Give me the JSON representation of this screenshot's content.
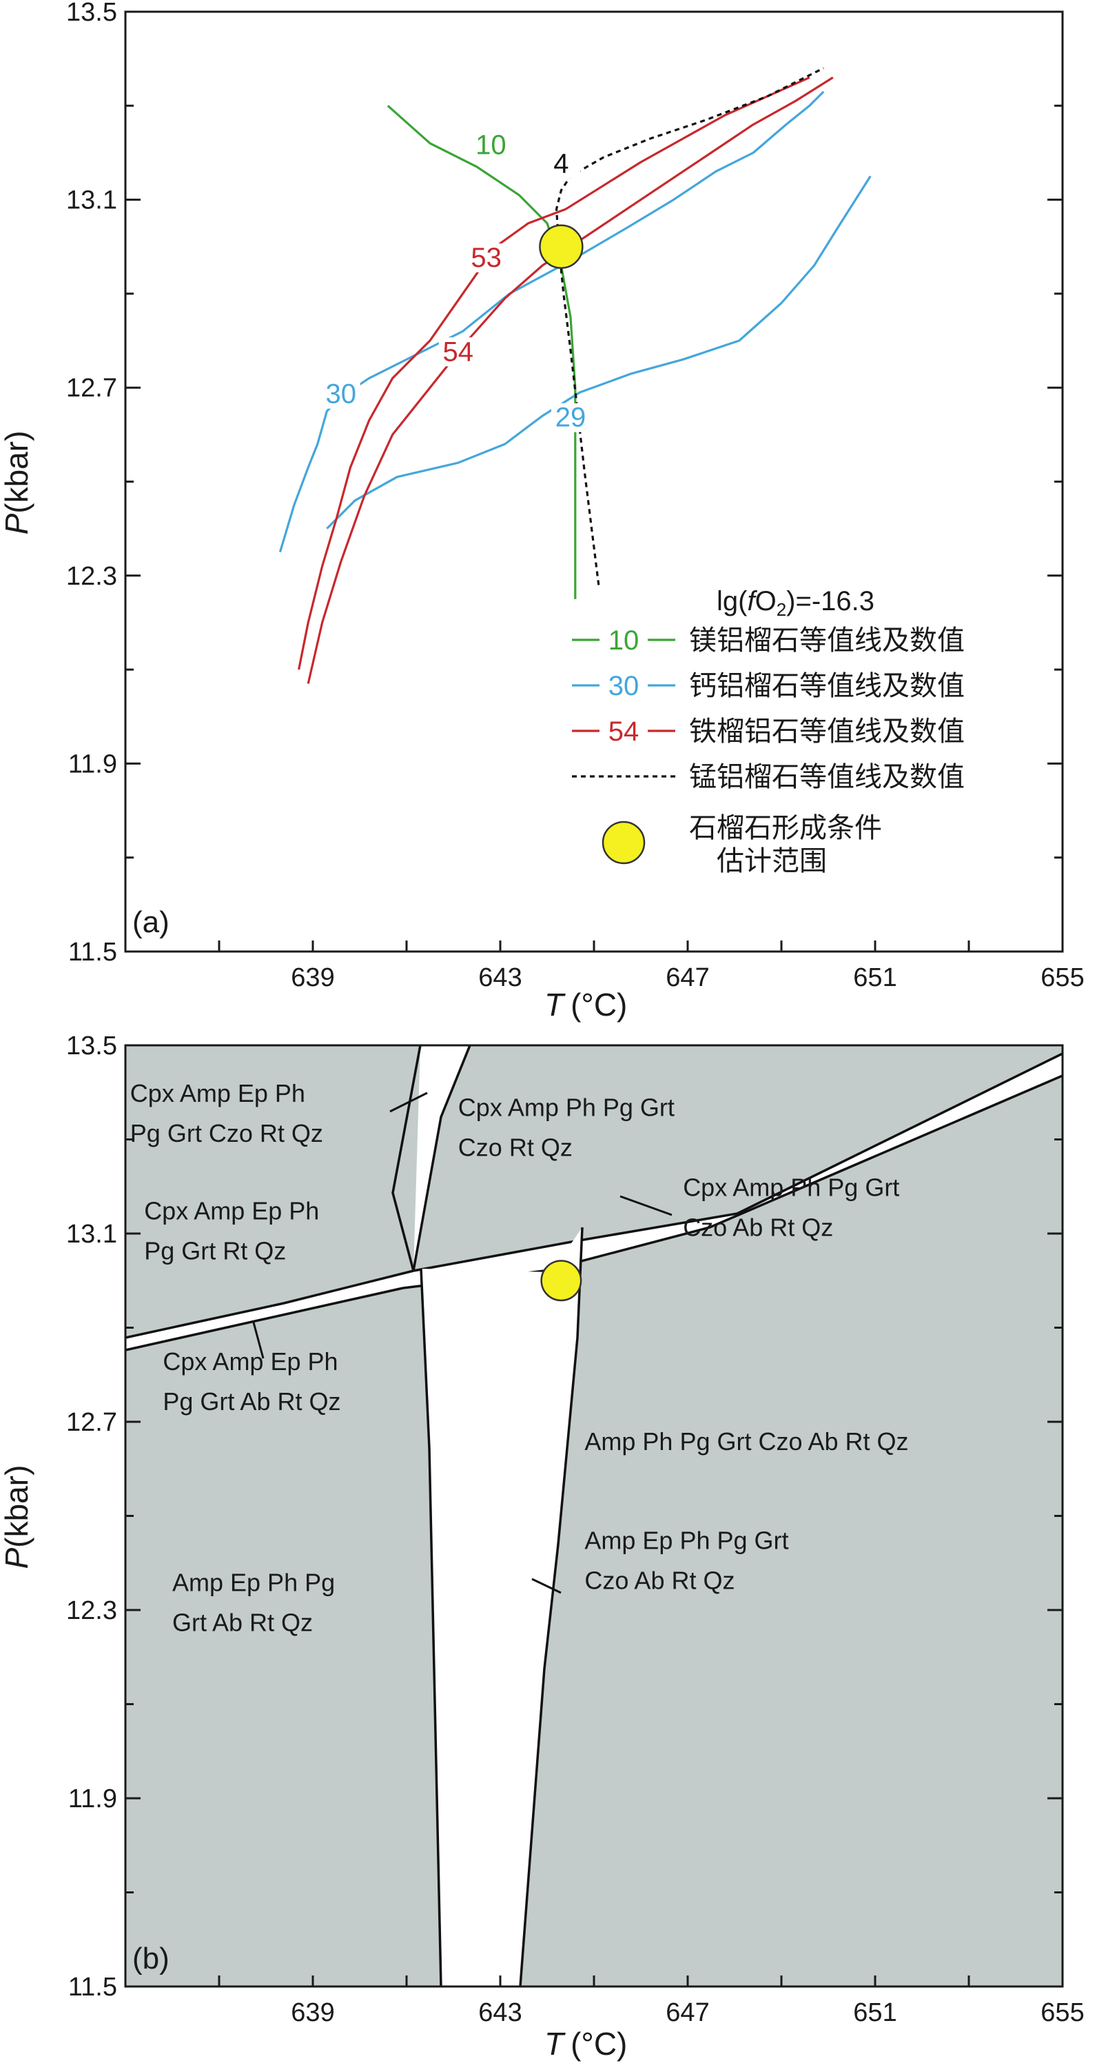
{
  "chart_data": [
    {
      "panel": "(a)",
      "type": "line",
      "xlabel": {
        "var": "T",
        "unit": "(°C)"
      },
      "ylabel": {
        "var": "P",
        "unit": "(kbar)"
      },
      "xlim": [
        635,
        655
      ],
      "ylim": [
        11.5,
        13.5
      ],
      "xticks": [
        "639",
        "643",
        "647",
        "651",
        "655"
      ],
      "yticks": [
        "11.5",
        "11.9",
        "12.3",
        "12.7",
        "13.1",
        "13.5"
      ],
      "legend_title": "lg(fO₂)=-16.3",
      "legend_title_parts": {
        "prefix": "lg(",
        "f": "f",
        "O": "O",
        "sub": "2",
        "suffix": ")=-16.3"
      },
      "legend_position": "bottom-right",
      "colors": {
        "pyrope": "#3aa535",
        "grossular": "#44a6dc",
        "almandine": "#c8282d",
        "spessartine": "#111111",
        "marker": "#f5f01f"
      },
      "legend": [
        {
          "key": "pyrope",
          "line_label": "10",
          "text": "镁铝榴石等值线及数值"
        },
        {
          "key": "grossular",
          "line_label": "30",
          "text": "钙铝榴石等值线及数值"
        },
        {
          "key": "almandine",
          "line_label": "54",
          "text": "铁榴铝石等值线及数值"
        },
        {
          "key": "spessartine",
          "line_label": "",
          "text": "锰铝榴石等值线及数值"
        },
        {
          "key": "marker",
          "line_label": "",
          "text": "石榴石形成条件",
          "text2": "估计范围"
        }
      ],
      "series": [
        {
          "key": "pyrope",
          "label": "10",
          "color": "#3aa535",
          "dashed": false,
          "x": [
            640.6,
            641.5,
            642.5,
            643.4,
            644.0,
            644.3,
            644.5,
            644.6,
            644.6,
            644.6,
            644.6
          ],
          "y": [
            13.3,
            13.22,
            13.17,
            13.11,
            13.05,
            12.96,
            12.85,
            12.7,
            12.55,
            12.4,
            12.25
          ],
          "labels": [
            {
              "text": "10",
              "x": 642.8,
              "y": 13.2
            }
          ]
        },
        {
          "key": "grossular",
          "label": "30",
          "color": "#44a6dc",
          "dashed": false,
          "x": [
            638.3,
            638.6,
            638.9,
            639.1,
            639.3,
            639.6,
            640.2,
            641.2,
            642.2,
            643.2,
            644.5,
            645.7,
            646.7,
            647.6,
            648.4,
            649.1,
            649.6,
            649.9
          ],
          "y": [
            12.35,
            12.45,
            12.53,
            12.58,
            12.65,
            12.68,
            12.72,
            12.77,
            12.82,
            12.9,
            12.97,
            13.04,
            13.1,
            13.16,
            13.2,
            13.26,
            13.3,
            13.33
          ],
          "labels": [
            {
              "text": "30",
              "x": 639.6,
              "y": 12.67
            }
          ]
        },
        {
          "key": "grossular",
          "label": "29",
          "color": "#44a6dc",
          "dashed": false,
          "x": [
            639.3,
            639.9,
            640.8,
            642.1,
            643.1,
            643.9,
            644.7,
            645.8,
            646.9,
            648.1,
            649.0,
            649.7,
            650.2,
            650.9
          ],
          "y": [
            12.4,
            12.46,
            12.51,
            12.54,
            12.58,
            12.64,
            12.69,
            12.73,
            12.76,
            12.8,
            12.88,
            12.96,
            13.04,
            13.15
          ],
          "labels": [
            {
              "text": "29",
              "x": 644.5,
              "y": 12.62
            }
          ]
        },
        {
          "key": "almandine",
          "label": "53",
          "color": "#c8282d",
          "dashed": false,
          "x": [
            638.7,
            638.9,
            639.2,
            639.5,
            639.8,
            640.2,
            640.7,
            641.5,
            642.2,
            642.9,
            643.6,
            644.4,
            645.2,
            646.0,
            646.9,
            647.8,
            648.7,
            649.6
          ],
          "y": [
            12.1,
            12.2,
            12.32,
            12.42,
            12.53,
            12.63,
            12.72,
            12.8,
            12.9,
            13.0,
            13.05,
            13.08,
            13.13,
            13.18,
            13.23,
            13.28,
            13.32,
            13.36
          ],
          "labels": [
            {
              "text": "53",
              "x": 642.7,
              "y": 12.96
            }
          ]
        },
        {
          "key": "almandine",
          "label": "54",
          "color": "#c8282d",
          "dashed": false,
          "x": [
            638.9,
            639.2,
            639.6,
            640.1,
            640.7,
            641.5,
            642.3,
            643.1,
            643.9,
            644.8,
            645.7,
            646.6,
            647.5,
            648.4,
            649.3,
            650.1
          ],
          "y": [
            12.07,
            12.2,
            12.33,
            12.47,
            12.6,
            12.7,
            12.8,
            12.89,
            12.96,
            13.02,
            13.08,
            13.14,
            13.2,
            13.26,
            13.31,
            13.36
          ],
          "labels": [
            {
              "text": "54",
              "x": 642.1,
              "y": 12.76
            }
          ]
        },
        {
          "key": "spessartine",
          "label": "4",
          "color": "#111111",
          "dashed": true,
          "x": [
            645.1,
            644.95,
            644.8,
            644.65,
            644.5,
            644.35,
            644.25,
            644.2,
            644.3,
            644.5,
            645.2,
            646.2,
            647.4,
            648.7,
            649.9
          ],
          "y": [
            12.28,
            12.4,
            12.52,
            12.65,
            12.78,
            12.9,
            13.0,
            13.08,
            13.12,
            13.15,
            13.19,
            13.23,
            13.27,
            13.32,
            13.38
          ],
          "labels": [
            {
              "text": "4",
              "x": 644.3,
              "y": 13.16
            }
          ]
        }
      ],
      "estimate_marker": {
        "x": 644.3,
        "y": 13.0,
        "radius_c": 0.7
      }
    },
    {
      "panel": "(b)",
      "type": "phase-diagram",
      "xlabel": {
        "var": "T",
        "unit": "(°C)"
      },
      "ylabel": {
        "var": "P",
        "unit": "(kbar)"
      },
      "xlim": [
        635,
        655
      ],
      "ylim": [
        11.5,
        13.5
      ],
      "xticks": [
        "639",
        "643",
        "647",
        "651",
        "655"
      ],
      "yticks": [
        "11.5",
        "11.9",
        "12.3",
        "12.7",
        "13.1",
        "13.5"
      ],
      "fill_color": "#c3cccb",
      "field_labels": [
        {
          "lines": [
            "Cpx Amp Ep Ph",
            "Pg Grt Czo Rt Qz"
          ],
          "x": 635.1,
          "y": 13.38
        },
        {
          "lines": [
            "Cpx Amp Ph Pg Grt",
            "Czo Rt Qz"
          ],
          "x": 642.1,
          "y": 13.35
        },
        {
          "lines": [
            "Cpx Amp Ep Ph",
            "Pg Grt Rt Qz"
          ],
          "x": 635.4,
          "y": 13.13
        },
        {
          "lines": [
            "Cpx Amp Ph Pg Grt",
            "Czo Ab Rt Qz"
          ],
          "x": 646.9,
          "y": 13.18
        },
        {
          "lines": [
            "Cpx Amp Ep Ph",
            "Pg Grt Ab Rt Qz"
          ],
          "x": 635.8,
          "y": 12.81
        },
        {
          "lines": [
            "Amp Ph Pg Grt Czo Ab Rt Qz"
          ],
          "x": 644.8,
          "y": 12.64
        },
        {
          "lines": [
            "Amp Ep Ph Pg Grt",
            "Czo Ab Rt Qz"
          ],
          "x": 644.8,
          "y": 12.43
        },
        {
          "lines": [
            "Amp Ep Ph Pg",
            "Grt Ab Rt Qz"
          ],
          "x": 636.0,
          "y": 12.34
        }
      ],
      "estimate_marker": {
        "x": 644.3,
        "y": 13.0,
        "radius_c": 0.65
      }
    }
  ]
}
